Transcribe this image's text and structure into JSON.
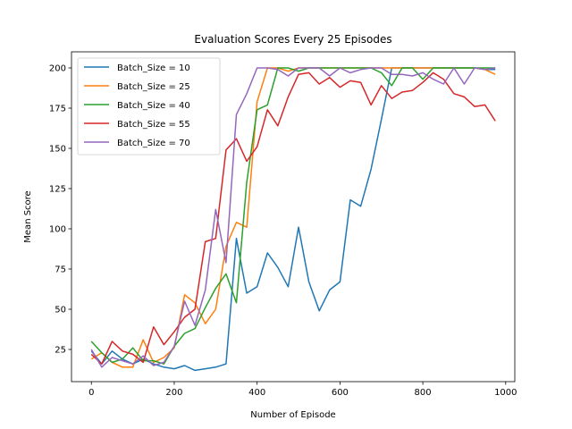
{
  "chart_data": {
    "type": "line",
    "title": "Evaluation Scores Every 25 Episodes",
    "xlabel": "Number of Episode",
    "ylabel": "Mean Score",
    "xlim": [
      -48,
      1022
    ],
    "ylim": [
      5,
      210
    ],
    "xticks": [
      0,
      200,
      400,
      600,
      800,
      1000
    ],
    "yticks": [
      25,
      50,
      75,
      100,
      125,
      150,
      175,
      200
    ],
    "grid": false,
    "legend_position": "top-left",
    "x": [
      0,
      25,
      50,
      75,
      100,
      125,
      150,
      175,
      200,
      225,
      250,
      275,
      300,
      325,
      350,
      375,
      400,
      425,
      450,
      475,
      500,
      525,
      550,
      575,
      600,
      625,
      650,
      675,
      700,
      725,
      750,
      775,
      800,
      825,
      850,
      875,
      900,
      925,
      950,
      975
    ],
    "series": [
      {
        "name": "Batch_Size = 10",
        "color": "#1f77b4",
        "values": [
          24,
          16,
          24,
          19,
          16,
          19,
          16,
          14,
          13,
          15,
          12,
          13,
          14,
          16,
          94,
          60,
          64,
          85,
          76,
          64,
          101,
          67,
          49,
          62,
          67,
          118,
          114,
          137,
          168,
          200,
          200,
          200,
          200,
          200,
          200,
          200,
          200,
          200,
          199,
          199
        ]
      },
      {
        "name": "Batch_Size = 25",
        "color": "#ff7f0e",
        "values": [
          19,
          23,
          17,
          14,
          14,
          31,
          17,
          20,
          26,
          59,
          54,
          41,
          50,
          89,
          104,
          101,
          179,
          200,
          200,
          198,
          200,
          200,
          200,
          200,
          200,
          200,
          200,
          200,
          200,
          200,
          200,
          200,
          200,
          200,
          200,
          200,
          200,
          200,
          199,
          196
        ]
      },
      {
        "name": "Batch_Size = 40",
        "color": "#2ca02c",
        "values": [
          30,
          23,
          17,
          19,
          26,
          18,
          18,
          16,
          27,
          35,
          38,
          51,
          63,
          72,
          54,
          129,
          174,
          177,
          200,
          200,
          198,
          200,
          200,
          200,
          200,
          200,
          200,
          200,
          197,
          189,
          200,
          200,
          193,
          200,
          200,
          200,
          200,
          200,
          200,
          200
        ]
      },
      {
        "name": "Batch_Size = 55",
        "color": "#d62728",
        "values": [
          22,
          16,
          30,
          24,
          22,
          17,
          39,
          28,
          36,
          45,
          50,
          92,
          94,
          149,
          156,
          142,
          151,
          174,
          164,
          182,
          196,
          197,
          190,
          194,
          188,
          192,
          191,
          177,
          189,
          181,
          185,
          186,
          191,
          197,
          193,
          184,
          182,
          176,
          177,
          167
        ]
      },
      {
        "name": "Batch_Size = 70",
        "color": "#9467bd",
        "values": [
          25,
          14,
          20,
          18,
          16,
          21,
          15,
          17,
          27,
          55,
          40,
          62,
          112,
          79,
          171,
          184,
          200,
          200,
          199,
          195,
          200,
          200,
          200,
          195,
          200,
          197,
          199,
          200,
          200,
          196,
          196,
          195,
          197,
          193,
          190,
          200,
          190,
          200,
          199,
          200
        ]
      }
    ]
  }
}
